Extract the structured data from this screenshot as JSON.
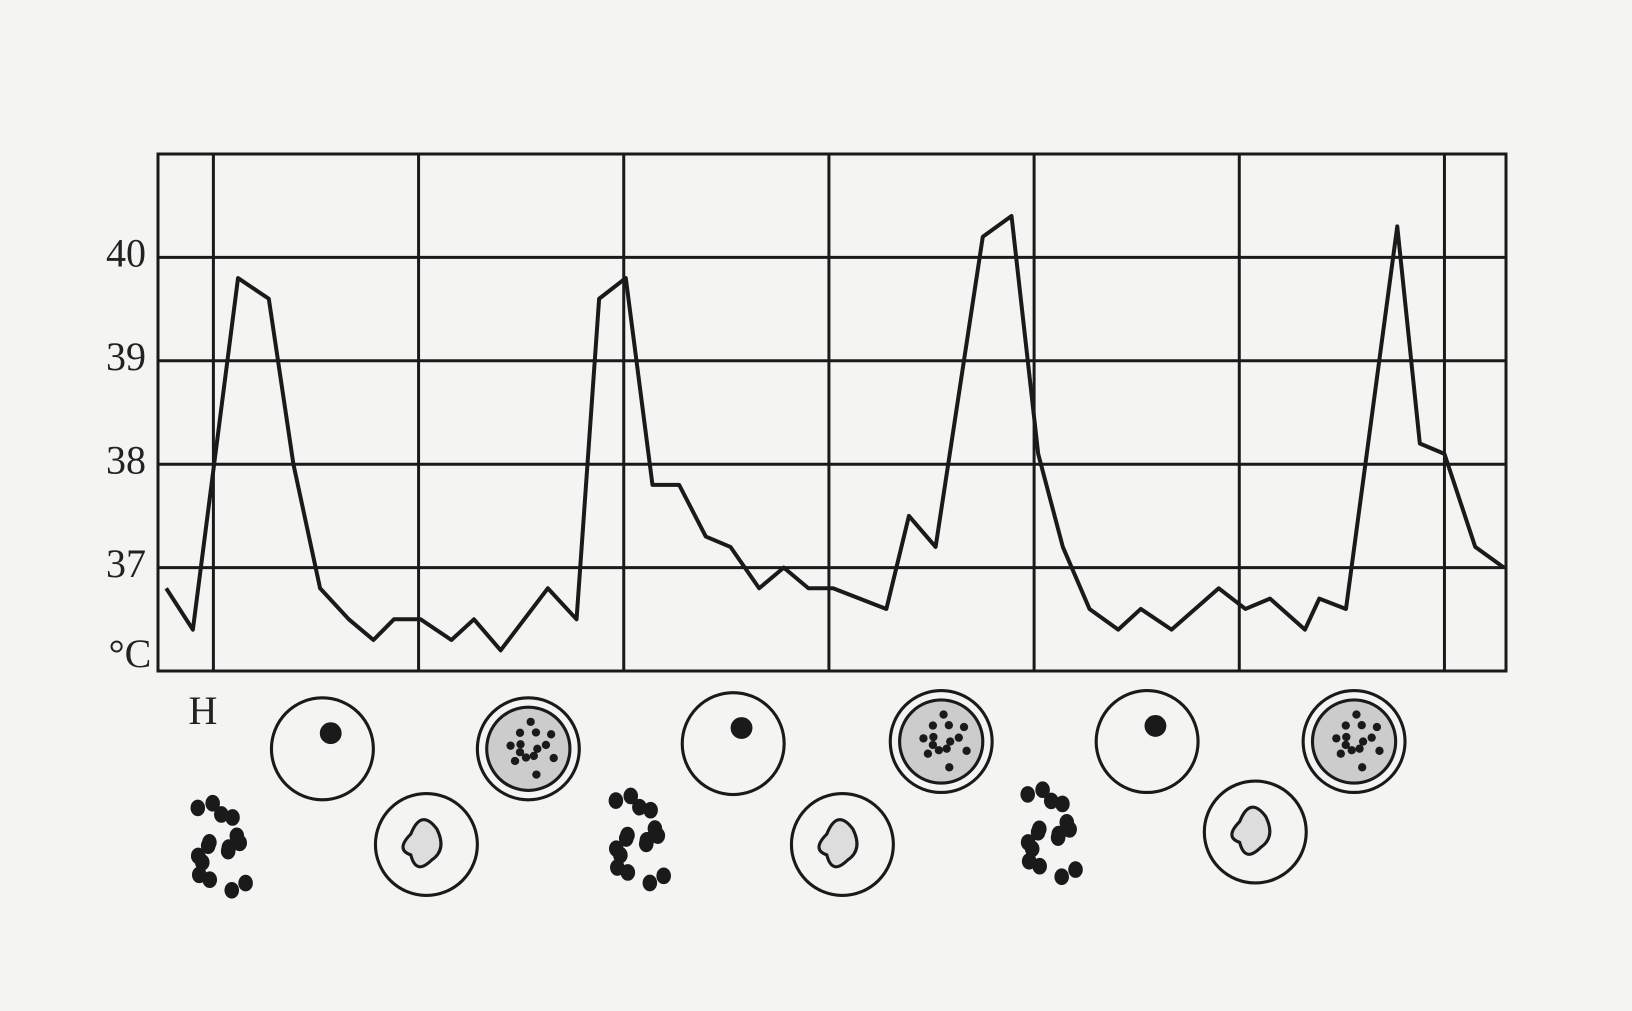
{
  "chart_data": {
    "type": "line",
    "y_label": "°C",
    "x_label": "Н",
    "x": [
      -0.23,
      -0.1,
      0.12,
      0.27,
      0.39,
      0.52,
      0.66,
      0.78,
      0.88,
      1.01,
      1.16,
      1.27,
      1.4,
      1.63,
      1.77,
      1.88,
      2.01,
      2.14,
      2.27,
      2.4,
      2.52,
      2.66,
      2.78,
      2.9,
      3.02,
      3.28,
      3.39,
      3.52,
      3.75,
      3.89,
      4.02,
      4.14,
      4.27,
      4.41,
      4.52,
      4.67,
      4.9,
      5.03,
      5.15,
      5.32,
      5.39,
      5.52,
      5.77,
      5.88,
      6.0,
      6.15,
      6.29
    ],
    "values": [
      36.8,
      36.4,
      39.8,
      39.6,
      38.0,
      36.8,
      36.5,
      36.3,
      36.5,
      36.5,
      36.3,
      36.5,
      36.2,
      36.8,
      36.5,
      39.6,
      39.8,
      37.8,
      37.8,
      37.3,
      37.2,
      36.8,
      37.0,
      36.8,
      36.8,
      36.6,
      37.5,
      37.2,
      40.2,
      40.4,
      38.1,
      37.2,
      36.6,
      36.4,
      36.6,
      36.4,
      36.8,
      36.6,
      36.7,
      36.4,
      36.7,
      36.6,
      40.3,
      38.2,
      38.1,
      37.2,
      37.0
    ],
    "color": "#1a1a1a",
    "xlim": [
      -0.27,
      6.3
    ],
    "xticks": [
      0,
      1,
      2,
      3,
      4,
      5,
      6
    ],
    "ylim": [
      36,
      41
    ],
    "yticks": [
      37,
      38,
      39,
      40
    ],
    "grid": true
  }
}
